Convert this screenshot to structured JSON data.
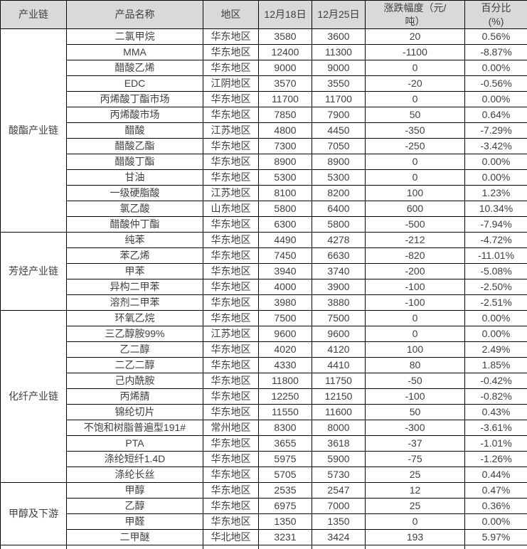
{
  "colors": {
    "header_bg": "#d9d9d9",
    "border": "#000000",
    "text": "#3f3f3f",
    "row_bg": "#ffffff"
  },
  "table": {
    "columns": [
      {
        "key": "chain",
        "label": "产业链"
      },
      {
        "key": "product",
        "label": "产品名称"
      },
      {
        "key": "region",
        "label": "地区"
      },
      {
        "key": "dec18",
        "label": "12月18日"
      },
      {
        "key": "dec25",
        "label": "12月25日"
      },
      {
        "key": "change",
        "label": "涨跌幅度（元/\n吨）"
      },
      {
        "key": "pct",
        "label": "百分比\n(%)"
      }
    ],
    "groups": [
      {
        "chain": "酸酯产业链",
        "rows": [
          {
            "product": "二氯甲烷",
            "region": "华东地区",
            "dec18": "3580",
            "dec25": "3600",
            "change": "20",
            "pct": "0.56%"
          },
          {
            "product": "MMA",
            "region": "华东地区",
            "dec18": "12400",
            "dec25": "11300",
            "change": "-1100",
            "pct": "-8.87%"
          },
          {
            "product": "醋酸乙烯",
            "region": "华东地区",
            "dec18": "9000",
            "dec25": "9000",
            "change": "0",
            "pct": "0.00%"
          },
          {
            "product": "EDC",
            "region": "江阴地区",
            "dec18": "3570",
            "dec25": "3550",
            "change": "-20",
            "pct": "-0.56%"
          },
          {
            "product": "丙烯酸丁酯市场",
            "region": "华东地区",
            "dec18": "11700",
            "dec25": "11700",
            "change": "0",
            "pct": "0.00%"
          },
          {
            "product": "丙烯酸市场",
            "region": "华东地区",
            "dec18": "7850",
            "dec25": "7900",
            "change": "50",
            "pct": "0.64%"
          },
          {
            "product": "醋酸",
            "region": "江苏地区",
            "dec18": "4800",
            "dec25": "4450",
            "change": "-350",
            "pct": "-7.29%"
          },
          {
            "product": "醋酸乙酯",
            "region": "华东地区",
            "dec18": "7300",
            "dec25": "7050",
            "change": "-250",
            "pct": "-3.42%"
          },
          {
            "product": "醋酸丁酯",
            "region": "华东地区",
            "dec18": "8900",
            "dec25": "8900",
            "change": "0",
            "pct": "0.00%"
          },
          {
            "product": "甘油",
            "region": "华东地区",
            "dec18": "5300",
            "dec25": "5300",
            "change": "0",
            "pct": "0.00%"
          },
          {
            "product": "一级硬脂酸",
            "region": "江苏地区",
            "dec18": "8100",
            "dec25": "8200",
            "change": "100",
            "pct": "1.23%"
          },
          {
            "product": "氯乙酸",
            "region": "山东地区",
            "dec18": "5800",
            "dec25": "6400",
            "change": "600",
            "pct": "10.34%"
          },
          {
            "product": "醋酸仲丁酯",
            "region": "华东地区",
            "dec18": "6300",
            "dec25": "5800",
            "change": "-500",
            "pct": "-7.94%"
          }
        ]
      },
      {
        "chain": "芳烃产业链",
        "rows": [
          {
            "product": "纯苯",
            "region": "华东地区",
            "dec18": "4490",
            "dec25": "4278",
            "change": "-212",
            "pct": "-4.72%"
          },
          {
            "product": "苯乙烯",
            "region": "华东地区",
            "dec18": "7450",
            "dec25": "6630",
            "change": "-820",
            "pct": "-11.01%"
          },
          {
            "product": "甲苯",
            "region": "华东地区",
            "dec18": "3940",
            "dec25": "3740",
            "change": "-200",
            "pct": "-5.08%"
          },
          {
            "product": "异构二甲苯",
            "region": "华东地区",
            "dec18": "4000",
            "dec25": "3900",
            "change": "-100",
            "pct": "-2.50%"
          },
          {
            "product": "溶剂二甲苯",
            "region": "华东地区",
            "dec18": "3980",
            "dec25": "3880",
            "change": "-100",
            "pct": "-2.51%"
          }
        ]
      },
      {
        "chain": "化纤产业链",
        "rows": [
          {
            "product": "环氧乙烷",
            "region": "华东地区",
            "dec18": "7500",
            "dec25": "7500",
            "change": "0",
            "pct": "0.00%"
          },
          {
            "product": "三乙醇胺99%",
            "region": "江苏地区",
            "dec18": "9600",
            "dec25": "9600",
            "change": "0",
            "pct": "0.00%"
          },
          {
            "product": "乙二醇",
            "region": "华东地区",
            "dec18": "4020",
            "dec25": "4120",
            "change": "100",
            "pct": "2.49%"
          },
          {
            "product": "二乙二醇",
            "region": "华东地区",
            "dec18": "4330",
            "dec25": "4410",
            "change": "80",
            "pct": "1.85%"
          },
          {
            "product": "己内酰胺",
            "region": "华东地区",
            "dec18": "11800",
            "dec25": "11750",
            "change": "-50",
            "pct": "-0.42%"
          },
          {
            "product": "丙烯腈",
            "region": "华东地区",
            "dec18": "12250",
            "dec25": "12150",
            "change": "-100",
            "pct": "-0.82%"
          },
          {
            "product": "锦纶切片",
            "region": "华东地区",
            "dec18": "11550",
            "dec25": "11600",
            "change": "50",
            "pct": "0.43%"
          },
          {
            "product": "不饱和树脂普遍型191#",
            "region": "常州地区",
            "dec18": "8300",
            "dec25": "8000",
            "change": "-300",
            "pct": "-3.61%"
          },
          {
            "product": "PTA",
            "region": "华东地区",
            "dec18": "3655",
            "dec25": "3618",
            "change": "-37",
            "pct": "-1.01%"
          },
          {
            "product": "涤纶短纤1.4D",
            "region": "华东地区",
            "dec18": "5975",
            "dec25": "5900",
            "change": "-75",
            "pct": "-1.26%"
          },
          {
            "product": "涤纶长丝",
            "region": "华东地区",
            "dec18": "5705",
            "dec25": "5730",
            "change": "25",
            "pct": "0.44%"
          }
        ]
      },
      {
        "chain": "甲醇及下游",
        "rows": [
          {
            "product": "甲醇",
            "region": "华东地区",
            "dec18": "2535",
            "dec25": "2547",
            "change": "12",
            "pct": "0.47%"
          },
          {
            "product": "乙醇",
            "region": "华东地区",
            "dec18": "6975",
            "dec25": "7000",
            "change": "25",
            "pct": "0.36%"
          },
          {
            "product": "甲醛",
            "region": "华东地区",
            "dec18": "1350",
            "dec25": "1350",
            "change": "0",
            "pct": "0.00%"
          },
          {
            "product": "二甲醚",
            "region": "华北地区",
            "dec18": "3231",
            "dec25": "3424",
            "change": "193",
            "pct": "5.97%"
          }
        ]
      }
    ]
  }
}
